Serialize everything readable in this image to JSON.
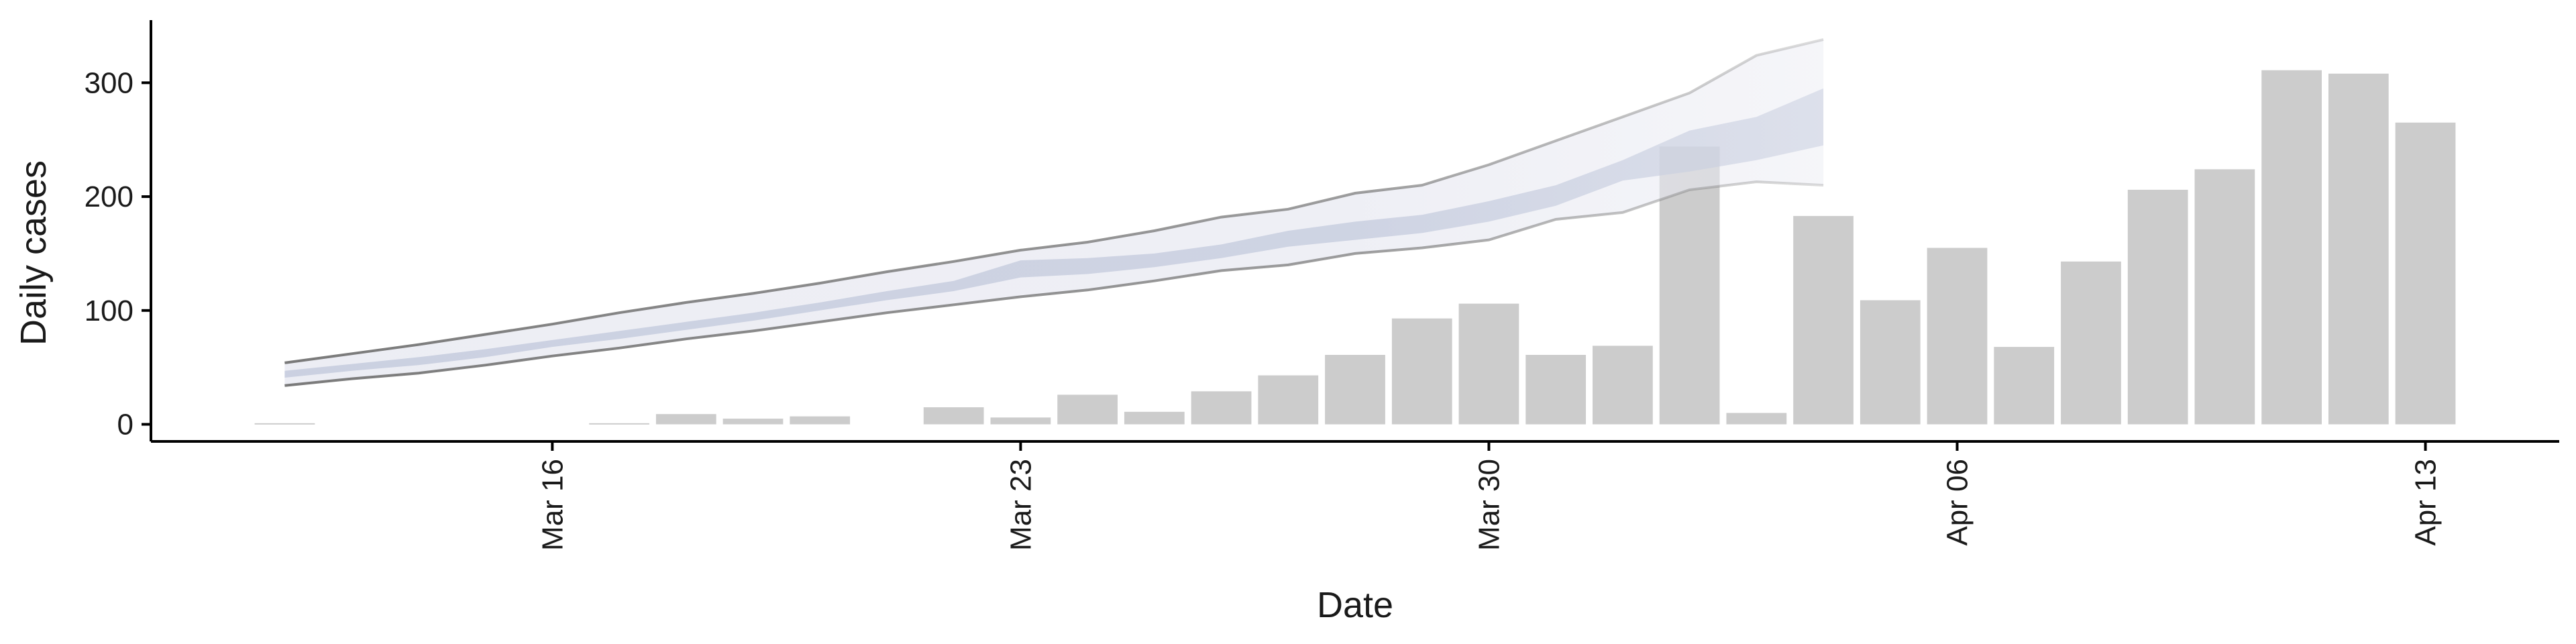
{
  "chart_data": {
    "type": "bar",
    "title": "",
    "xlabel": "Date",
    "ylabel": "Daily cases",
    "ylim": [
      -15,
      355
    ],
    "xlim": [
      "2020-03-10",
      "2020-04-15"
    ],
    "y_ticks": [
      0,
      100,
      200,
      300
    ],
    "x_ticks": [
      {
        "date": "2020-03-16",
        "label": "Mar 16"
      },
      {
        "date": "2020-03-23",
        "label": "Mar 23"
      },
      {
        "date": "2020-03-30",
        "label": "Mar 30"
      },
      {
        "date": "2020-04-06",
        "label": "Apr 06"
      },
      {
        "date": "2020-04-13",
        "label": "Apr 13"
      }
    ],
    "grid": false,
    "colors": {
      "bars": "#cccccc",
      "outer_band": "#e9eaf2",
      "inner_band": "#c9cfe0",
      "band_edge": "#7a7a7a"
    },
    "bars": [
      {
        "date": "2020-03-12",
        "value": 1
      },
      {
        "date": "2020-03-13",
        "value": 0
      },
      {
        "date": "2020-03-14",
        "value": 0
      },
      {
        "date": "2020-03-15",
        "value": 0
      },
      {
        "date": "2020-03-16",
        "value": 0
      },
      {
        "date": "2020-03-17",
        "value": 1
      },
      {
        "date": "2020-03-18",
        "value": 9
      },
      {
        "date": "2020-03-19",
        "value": 5
      },
      {
        "date": "2020-03-20",
        "value": 7
      },
      {
        "date": "2020-03-21",
        "value": 0
      },
      {
        "date": "2020-03-22",
        "value": 15
      },
      {
        "date": "2020-03-23",
        "value": 6
      },
      {
        "date": "2020-03-24",
        "value": 26
      },
      {
        "date": "2020-03-25",
        "value": 11
      },
      {
        "date": "2020-03-26",
        "value": 29
      },
      {
        "date": "2020-03-27",
        "value": 43
      },
      {
        "date": "2020-03-28",
        "value": 61
      },
      {
        "date": "2020-03-29",
        "value": 93
      },
      {
        "date": "2020-03-30",
        "value": 106
      },
      {
        "date": "2020-03-31",
        "value": 61
      },
      {
        "date": "2020-04-01",
        "value": 69
      },
      {
        "date": "2020-04-02",
        "value": 244
      },
      {
        "date": "2020-04-03",
        "value": 10
      },
      {
        "date": "2020-04-04",
        "value": 183
      },
      {
        "date": "2020-04-05",
        "value": 109
      },
      {
        "date": "2020-04-06",
        "value": 155
      },
      {
        "date": "2020-04-07",
        "value": 68
      },
      {
        "date": "2020-04-08",
        "value": 143
      },
      {
        "date": "2020-04-09",
        "value": 206
      },
      {
        "date": "2020-04-10",
        "value": 224
      },
      {
        "date": "2020-04-11",
        "value": 311
      },
      {
        "date": "2020-04-12",
        "value": 308
      },
      {
        "date": "2020-04-13",
        "value": 265
      }
    ],
    "band": [
      {
        "date": "2020-03-12",
        "lo90": 34,
        "lo50": 41,
        "hi50": 47,
        "hi90": 54
      },
      {
        "date": "2020-03-13",
        "lo90": 40,
        "lo50": 47,
        "hi50": 53,
        "hi90": 62
      },
      {
        "date": "2020-03-14",
        "lo90": 45,
        "lo50": 52,
        "hi50": 59,
        "hi90": 70
      },
      {
        "date": "2020-03-15",
        "lo90": 52,
        "lo50": 59,
        "hi50": 66,
        "hi90": 79
      },
      {
        "date": "2020-03-16",
        "lo90": 60,
        "lo50": 68,
        "hi50": 74,
        "hi90": 88
      },
      {
        "date": "2020-03-17",
        "lo90": 67,
        "lo50": 75,
        "hi50": 82,
        "hi90": 98
      },
      {
        "date": "2020-03-18",
        "lo90": 75,
        "lo50": 83,
        "hi50": 90,
        "hi90": 107
      },
      {
        "date": "2020-03-19",
        "lo90": 82,
        "lo50": 91,
        "hi50": 98,
        "hi90": 115
      },
      {
        "date": "2020-03-20",
        "lo90": 90,
        "lo50": 100,
        "hi50": 107,
        "hi90": 124
      },
      {
        "date": "2020-03-21",
        "lo90": 98,
        "lo50": 109,
        "hi50": 117,
        "hi90": 134
      },
      {
        "date": "2020-03-22",
        "lo90": 105,
        "lo50": 117,
        "hi50": 126,
        "hi90": 143
      },
      {
        "date": "2020-03-23",
        "lo90": 112,
        "lo50": 129,
        "hi50": 144,
        "hi90": 153
      },
      {
        "date": "2020-03-24",
        "lo90": 118,
        "lo50": 132,
        "hi50": 146,
        "hi90": 160
      },
      {
        "date": "2020-03-25",
        "lo90": 126,
        "lo50": 138,
        "hi50": 150,
        "hi90": 170
      },
      {
        "date": "2020-03-26",
        "lo90": 135,
        "lo50": 146,
        "hi50": 158,
        "hi90": 182
      },
      {
        "date": "2020-03-27",
        "lo90": 140,
        "lo50": 156,
        "hi50": 170,
        "hi90": 189
      },
      {
        "date": "2020-03-28",
        "lo90": 150,
        "lo50": 162,
        "hi50": 178,
        "hi90": 203
      },
      {
        "date": "2020-03-29",
        "lo90": 155,
        "lo50": 168,
        "hi50": 184,
        "hi90": 210
      },
      {
        "date": "2020-03-30",
        "lo90": 162,
        "lo50": 178,
        "hi50": 196,
        "hi90": 228
      },
      {
        "date": "2020-03-31",
        "lo90": 180,
        "lo50": 192,
        "hi50": 210,
        "hi90": 249
      },
      {
        "date": "2020-04-01",
        "lo90": 186,
        "lo50": 214,
        "hi50": 232,
        "hi90": 270
      },
      {
        "date": "2020-04-02",
        "lo90": 206,
        "lo50": 222,
        "hi50": 258,
        "hi90": 291
      },
      {
        "date": "2020-04-03",
        "lo90": 213,
        "lo50": 232,
        "hi50": 270,
        "hi90": 324
      },
      {
        "date": "2020-04-04",
        "lo90": 210,
        "lo50": 245,
        "hi50": 295,
        "hi90": 338
      }
    ]
  }
}
